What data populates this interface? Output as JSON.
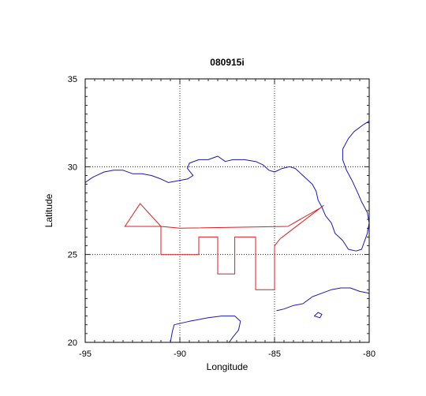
{
  "chart_data": {
    "type": "map-track",
    "title": "080915i",
    "xlabel": "Longitude",
    "ylabel": "Latitude",
    "xlim": [
      -95,
      -80
    ],
    "ylim": [
      20,
      35
    ],
    "x_ticks": [
      -95,
      -90,
      -85,
      -80
    ],
    "y_ticks": [
      20,
      25,
      30,
      35
    ],
    "grid_x": [
      -90,
      -85
    ],
    "grid_y": [
      25,
      30
    ],
    "colors": {
      "coast": "#1a1aa6",
      "track": "#d62020",
      "grid": "#000000"
    },
    "track": [
      [
        -82.5,
        27.7
      ],
      [
        -84.3,
        26.6
      ],
      [
        -90.0,
        26.5
      ],
      [
        -91.0,
        26.6
      ],
      [
        -92.1,
        27.9
      ],
      [
        -92.9,
        26.6
      ],
      [
        -91.0,
        26.6
      ],
      [
        -91.0,
        25.0
      ],
      [
        -89.0,
        25.0
      ],
      [
        -89.0,
        26.0
      ],
      [
        -88.0,
        26.0
      ],
      [
        -88.0,
        23.9
      ],
      [
        -87.1,
        23.9
      ],
      [
        -87.1,
        26.0
      ],
      [
        -86.0,
        26.0
      ],
      [
        -86.0,
        23.0
      ],
      [
        -85.0,
        23.0
      ],
      [
        -85.0,
        25.5
      ],
      [
        -84.7,
        25.9
      ],
      [
        -82.4,
        27.8
      ]
    ],
    "coastlines": [
      [
        [
          -95.0,
          29.1
        ],
        [
          -94.6,
          29.4
        ],
        [
          -94.0,
          29.7
        ],
        [
          -93.5,
          29.8
        ],
        [
          -93.0,
          29.8
        ],
        [
          -92.5,
          29.6
        ],
        [
          -92.0,
          29.6
        ],
        [
          -91.5,
          29.5
        ],
        [
          -91.0,
          29.3
        ],
        [
          -90.6,
          29.1
        ],
        [
          -90.1,
          29.2
        ],
        [
          -89.6,
          29.3
        ],
        [
          -89.3,
          29.5
        ],
        [
          -89.6,
          29.9
        ],
        [
          -89.5,
          30.2
        ],
        [
          -89.0,
          30.4
        ],
        [
          -88.5,
          30.4
        ],
        [
          -88.0,
          30.6
        ],
        [
          -87.6,
          30.3
        ],
        [
          -87.2,
          30.4
        ],
        [
          -86.6,
          30.4
        ],
        [
          -86.0,
          30.3
        ],
        [
          -85.6,
          30.1
        ],
        [
          -85.3,
          29.8
        ],
        [
          -85.0,
          29.7
        ],
        [
          -84.6,
          29.9
        ],
        [
          -84.2,
          30.0
        ],
        [
          -83.9,
          29.9
        ],
        [
          -83.4,
          29.4
        ],
        [
          -83.0,
          29.0
        ],
        [
          -82.8,
          28.6
        ],
        [
          -82.7,
          28.1
        ],
        [
          -82.5,
          27.7
        ],
        [
          -82.3,
          27.2
        ],
        [
          -82.0,
          26.8
        ],
        [
          -81.8,
          26.2
        ],
        [
          -81.4,
          25.8
        ],
        [
          -81.1,
          25.3
        ],
        [
          -80.7,
          25.2
        ],
        [
          -80.4,
          25.3
        ],
        [
          -80.3,
          25.6
        ],
        [
          -80.1,
          26.2
        ],
        [
          -80.0,
          26.8
        ],
        [
          -80.1,
          27.4
        ],
        [
          -80.4,
          28.0
        ],
        [
          -80.6,
          28.5
        ],
        [
          -80.9,
          29.2
        ],
        [
          -81.2,
          29.8
        ],
        [
          -81.4,
          30.4
        ],
        [
          -81.4,
          31.0
        ],
        [
          -81.1,
          31.6
        ],
        [
          -80.8,
          32.0
        ],
        [
          -80.3,
          32.4
        ],
        [
          -80.0,
          32.6
        ]
      ],
      [
        [
          -90.5,
          20.0
        ],
        [
          -90.4,
          20.6
        ],
        [
          -90.3,
          21.0
        ],
        [
          -89.5,
          21.2
        ],
        [
          -88.5,
          21.4
        ],
        [
          -87.8,
          21.5
        ],
        [
          -87.1,
          21.5
        ],
        [
          -86.8,
          21.2
        ],
        [
          -86.9,
          20.7
        ],
        [
          -87.2,
          20.3
        ],
        [
          -87.4,
          20.0
        ]
      ],
      [
        [
          -84.9,
          21.8
        ],
        [
          -84.5,
          21.9
        ],
        [
          -84.0,
          22.1
        ],
        [
          -83.5,
          22.2
        ],
        [
          -83.0,
          22.6
        ],
        [
          -82.5,
          22.8
        ],
        [
          -82.0,
          23.0
        ],
        [
          -81.5,
          23.1
        ],
        [
          -81.0,
          23.1
        ],
        [
          -80.5,
          22.9
        ],
        [
          -80.0,
          22.8
        ]
      ],
      [
        [
          -82.9,
          21.5
        ],
        [
          -82.7,
          21.7
        ],
        [
          -82.5,
          21.6
        ],
        [
          -82.6,
          21.4
        ],
        [
          -82.9,
          21.5
        ]
      ]
    ]
  }
}
